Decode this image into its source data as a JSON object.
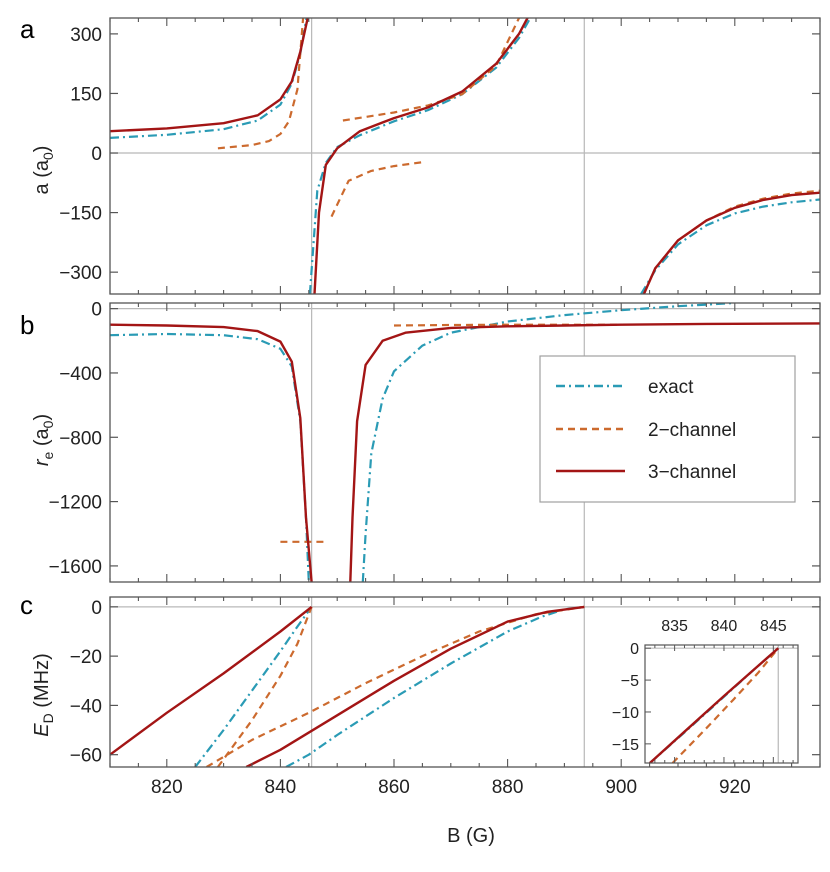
{
  "colors": {
    "exact": "#2a9bb5",
    "two": "#cc6a2e",
    "three": "#a31515",
    "guide": "#b8b8b8",
    "frame": "#555555"
  },
  "legend": {
    "exact": "exact",
    "two_channel": "2−channel",
    "three_channel": "3−channel"
  },
  "xaxis": {
    "label": "B (G)",
    "ticks": [
      "820",
      "840",
      "860",
      "880",
      "900",
      "920"
    ],
    "xlim": [
      810,
      935
    ]
  },
  "chart_data": [
    {
      "panel": "a",
      "type": "line",
      "ylabel_main": "a (a",
      "ylabel_sub": "0",
      "ylabel_tail": ")",
      "ylim": [
        -355,
        340
      ],
      "ytick_labels": [
        "300",
        "150",
        "0",
        "−150",
        "−300"
      ],
      "yticks": [
        300,
        150,
        0,
        -150,
        -300
      ],
      "vertical_lines_at_B": [
        845.5,
        893.5
      ],
      "horizontal_line_at": 0,
      "series": [
        {
          "name": "exact",
          "style": "dashdot",
          "points": [
            [
              810,
              38
            ],
            [
              820,
              46
            ],
            [
              830,
              60
            ],
            [
              836,
              82
            ],
            [
              840,
              122
            ],
            [
              842,
              175
            ],
            [
              843.5,
              250
            ],
            [
              844.6,
              340
            ],
            null,
            [
              845.2,
              -355
            ],
            [
              846.5,
              -95
            ],
            [
              848,
              -25
            ],
            [
              850,
              15
            ],
            [
              854,
              45
            ],
            [
              860,
              80
            ],
            [
              866,
              108
            ],
            [
              872,
              148
            ],
            [
              878,
              215
            ],
            [
              882,
              290
            ],
            [
              884,
              340
            ],
            null,
            [
              903.5,
              -355
            ],
            [
              906,
              -295
            ],
            [
              910,
              -230
            ],
            [
              915,
              -182
            ],
            [
              920,
              -152
            ],
            [
              925,
              -135
            ],
            [
              930,
              -124
            ],
            [
              935,
              -117
            ]
          ]
        },
        {
          "name": "2-channel",
          "style": "dashed",
          "points": [
            [
              829,
              12
            ],
            [
              835,
              20
            ],
            [
              838,
              30
            ],
            [
              840,
              48
            ],
            [
              841.5,
              80
            ],
            [
              843,
              160
            ],
            [
              844,
              340
            ],
            null,
            [
              849,
              -160
            ],
            [
              852,
              -70
            ],
            [
              856,
              -45
            ],
            [
              860,
              -33
            ],
            [
              865,
              -23
            ],
            null,
            [
              851,
              82
            ],
            [
              860,
              102
            ],
            [
              866,
              120
            ],
            [
              872,
              148
            ],
            [
              878,
              220
            ],
            [
              882,
              340
            ],
            null,
            [
              904,
              -355
            ],
            [
              906,
              -290
            ],
            [
              910,
              -220
            ],
            [
              915,
              -170
            ],
            [
              920,
              -135
            ],
            [
              925,
              -115
            ],
            [
              930,
              -102
            ],
            [
              935,
              -95
            ]
          ]
        },
        {
          "name": "3-channel",
          "style": "solid",
          "points": [
            [
              810,
              55
            ],
            [
              820,
              62
            ],
            [
              830,
              75
            ],
            [
              836,
              95
            ],
            [
              840,
              135
            ],
            [
              842,
              180
            ],
            [
              843.5,
              255
            ],
            [
              844.8,
              340
            ],
            null,
            [
              846,
              -355
            ],
            [
              846.8,
              -150
            ],
            [
              848,
              -30
            ],
            [
              850,
              12
            ],
            [
              854,
              55
            ],
            [
              860,
              88
            ],
            [
              866,
              115
            ],
            [
              872,
              155
            ],
            [
              878,
              225
            ],
            [
              882,
              300
            ],
            [
              883.5,
              340
            ],
            null,
            [
              904,
              -355
            ],
            [
              906,
              -290
            ],
            [
              910,
              -220
            ],
            [
              915,
              -170
            ],
            [
              920,
              -138
            ],
            [
              925,
              -118
            ],
            [
              930,
              -106
            ],
            [
              935,
              -100
            ]
          ]
        }
      ]
    },
    {
      "panel": "b",
      "type": "line",
      "ylabel_main": "r",
      "ylabel_sub": "e",
      "ylabel_tail": " (a",
      "ylabel_sub2": "0",
      "ylabel_tail2": ")",
      "ylim": [
        -1700,
        35
      ],
      "ytick_labels": [
        "0",
        "−400",
        "−800",
        "−1200",
        "−1600"
      ],
      "yticks": [
        0,
        -400,
        -800,
        -1200,
        -1600
      ],
      "vertical_lines_at_B": [
        845.5,
        893.5
      ],
      "horizontal_line_at": 0,
      "series": [
        {
          "name": "exact",
          "style": "dashdot",
          "points": [
            [
              810,
              -165
            ],
            [
              820,
              -158
            ],
            [
              830,
              -165
            ],
            [
              836,
              -190
            ],
            [
              840,
              -250
            ],
            [
              842,
              -360
            ],
            [
              843.5,
              -700
            ],
            [
              844.5,
              -1300
            ],
            [
              845,
              -1700
            ],
            null,
            [
              854.5,
              -1700
            ],
            [
              855,
              -1400
            ],
            [
              856,
              -900
            ],
            [
              858,
              -560
            ],
            [
              860,
              -390
            ],
            [
              865,
              -230
            ],
            [
              870,
              -150
            ],
            [
              880,
              -80
            ],
            [
              890,
              -40
            ],
            [
              900,
              -10
            ],
            [
              910,
              15
            ],
            [
              920,
              35
            ]
          ]
        },
        {
          "name": "2-channel",
          "style": "dashed",
          "points": [
            [
              840,
              -1450
            ],
            [
              848,
              -1450
            ],
            null,
            [
              860,
              -105
            ],
            [
              870,
              -102
            ],
            [
              880,
              -100
            ],
            [
              890,
              -100
            ],
            [
              900,
              -100
            ]
          ]
        },
        {
          "name": "3-channel",
          "style": "solid",
          "points": [
            [
              810,
              -100
            ],
            [
              820,
              -105
            ],
            [
              830,
              -115
            ],
            [
              836,
              -140
            ],
            [
              840,
              -205
            ],
            [
              842,
              -330
            ],
            [
              843.5,
              -680
            ],
            [
              844.5,
              -1300
            ],
            [
              845.5,
              -1700
            ],
            null,
            [
              852.3,
              -1700
            ],
            [
              852.7,
              -1300
            ],
            [
              853.5,
              -700
            ],
            [
              855,
              -350
            ],
            [
              858,
              -200
            ],
            [
              862,
              -150
            ],
            [
              870,
              -120
            ],
            [
              880,
              -110
            ],
            [
              890,
              -105
            ],
            [
              900,
              -100
            ],
            [
              915,
              -95
            ],
            [
              935,
              -92
            ]
          ]
        }
      ]
    },
    {
      "panel": "c",
      "type": "line",
      "ylabel_main": "E",
      "ylabel_sub": "D",
      "ylabel_tail": " (MHz)",
      "ylim": [
        -65,
        4
      ],
      "ytick_labels": [
        "0",
        "−20",
        "−40",
        "−60"
      ],
      "yticks": [
        0,
        -20,
        -40,
        -60
      ],
      "vertical_lines_at_B": [
        845.5,
        893.5
      ],
      "horizontal_line_at": 0,
      "series": [
        {
          "name": "exact",
          "style": "dashdot",
          "points": [
            [
              825,
              -65
            ],
            [
              830,
              -50
            ],
            [
              835,
              -34
            ],
            [
              840,
              -18
            ],
            [
              843,
              -8
            ],
            [
              845.5,
              0
            ],
            null,
            [
              841,
              -65
            ],
            [
              845,
              -60
            ],
            [
              850,
              -52
            ],
            [
              860,
              -37
            ],
            [
              870,
              -23
            ],
            [
              880,
              -10
            ],
            [
              886,
              -4
            ],
            [
              890,
              -1
            ],
            [
              893.5,
              0
            ]
          ]
        },
        {
          "name": "2-channel",
          "style": "dashed",
          "points": [
            [
              829,
              -65
            ],
            [
              835,
              -46
            ],
            [
              840,
              -28
            ],
            [
              843,
              -15
            ],
            [
              845.5,
              0
            ],
            null,
            [
              827,
              -65
            ],
            [
              835,
              -54
            ],
            [
              845,
              -43
            ],
            [
              855,
              -31
            ],
            [
              865,
              -20
            ],
            [
              875,
              -10
            ],
            [
              885,
              -3
            ],
            [
              893.5,
              0
            ]
          ]
        },
        {
          "name": "3-channel",
          "style": "solid",
          "points": [
            [
              810,
              -60
            ],
            [
              820,
              -43
            ],
            [
              830,
              -27
            ],
            [
              840,
              -10
            ],
            [
              845.5,
              0
            ],
            null,
            [
              834,
              -65
            ],
            [
              840,
              -58
            ],
            [
              850,
              -44
            ],
            [
              860,
              -30
            ],
            [
              870,
              -17
            ],
            [
              880,
              -6
            ],
            [
              887,
              -2
            ],
            [
              893.5,
              0
            ]
          ]
        }
      ]
    },
    {
      "panel": "c-inset",
      "type": "line",
      "xlim": [
        832,
        847.5
      ],
      "ylim": [
        -18,
        0.5
      ],
      "xtick_labels": [
        "835",
        "840",
        "845"
      ],
      "xticks": [
        835,
        840,
        845
      ],
      "ytick_labels": [
        "0",
        "−5",
        "−10",
        "−15"
      ],
      "yticks": [
        0,
        -5,
        -10,
        -15
      ],
      "vertical_line_at_B": 845.5,
      "series": [
        {
          "name": "exact",
          "style": "dashdot",
          "points": [
            [
              832.5,
              -18
            ],
            [
              836,
              -13.2
            ],
            [
              840,
              -7.6
            ],
            [
              843,
              -3.4
            ],
            [
              845.5,
              0
            ]
          ]
        },
        {
          "name": "2-channel",
          "style": "dashed",
          "points": [
            [
              834.8,
              -18
            ],
            [
              838,
              -12.9
            ],
            [
              841,
              -8
            ],
            [
              843.5,
              -3.8
            ],
            [
              845.5,
              0
            ]
          ]
        },
        {
          "name": "3-channel",
          "style": "solid",
          "points": [
            [
              832.5,
              -18
            ],
            [
              836,
              -13.1
            ],
            [
              840,
              -7.5
            ],
            [
              843,
              -3.4
            ],
            [
              845.5,
              0
            ]
          ]
        }
      ]
    }
  ],
  "panel_letters": [
    "a",
    "b",
    "c"
  ]
}
